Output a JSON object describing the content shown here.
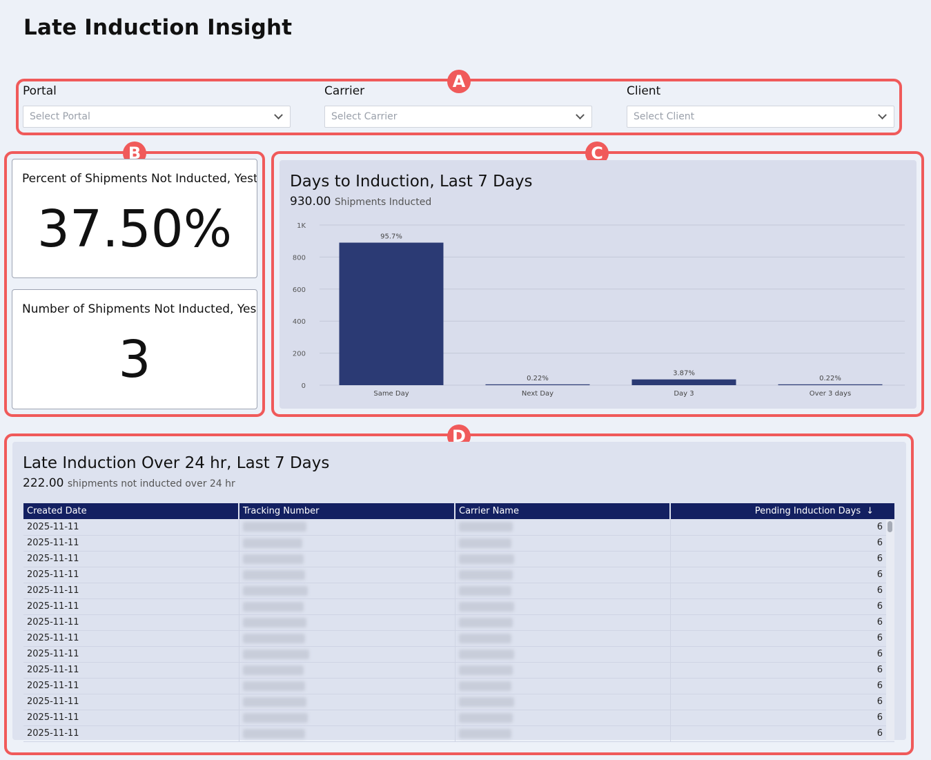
{
  "page_title": "Late Induction Insight",
  "filters": [
    {
      "label": "Portal",
      "placeholder": "Select Portal"
    },
    {
      "label": "Carrier",
      "placeholder": "Select Carrier"
    },
    {
      "label": "Client",
      "placeholder": "Select Client"
    }
  ],
  "callouts": {
    "a": "A",
    "b": "B",
    "c": "C",
    "d": "D"
  },
  "kpis": {
    "percent_label": "Percent of Shipments Not Inducted, Yest",
    "percent_value": "37.50%",
    "number_label": "Number of Shipments Not Inducted, Yes",
    "number_value": "3"
  },
  "chart_panel": {
    "title": "Days to Induction, Last 7 Days",
    "subtitle_value": "930.00",
    "subtitle_text": "Shipments Inducted"
  },
  "chart_data": {
    "type": "bar",
    "categories": [
      "Same Day",
      "Next Day",
      "Day 3",
      "Over 3 days"
    ],
    "values": [
      890,
      2,
      36,
      2
    ],
    "data_labels": [
      "95.7%",
      "0.22%",
      "3.87%",
      "0.22%"
    ],
    "y_ticks": [
      "0",
      "200",
      "400",
      "600",
      "800",
      "1K"
    ],
    "ylim": [
      0,
      1000
    ],
    "grid": true,
    "bar_color": "#2b3a74"
  },
  "table_panel": {
    "title": "Late Induction Over 24 hr, Last 7 Days",
    "subtitle_value": "222.00",
    "subtitle_text": "shipments not inducted over 24 hr",
    "columns": [
      "Created Date",
      "Tracking Number",
      "Carrier Name",
      "Pending Induction Days"
    ],
    "sort_icon": "↓",
    "rows": [
      [
        "2025-11-11",
        "6"
      ],
      [
        "2025-11-11",
        "6"
      ],
      [
        "2025-11-11",
        "6"
      ],
      [
        "2025-11-11",
        "6"
      ],
      [
        "2025-11-11",
        "6"
      ],
      [
        "2025-11-11",
        "6"
      ],
      [
        "2025-11-11",
        "6"
      ],
      [
        "2025-11-11",
        "6"
      ],
      [
        "2025-11-11",
        "6"
      ],
      [
        "2025-11-11",
        "6"
      ],
      [
        "2025-11-11",
        "6"
      ],
      [
        "2025-11-11",
        "6"
      ],
      [
        "2025-11-11",
        "6"
      ],
      [
        "2025-11-11",
        "6"
      ]
    ]
  }
}
